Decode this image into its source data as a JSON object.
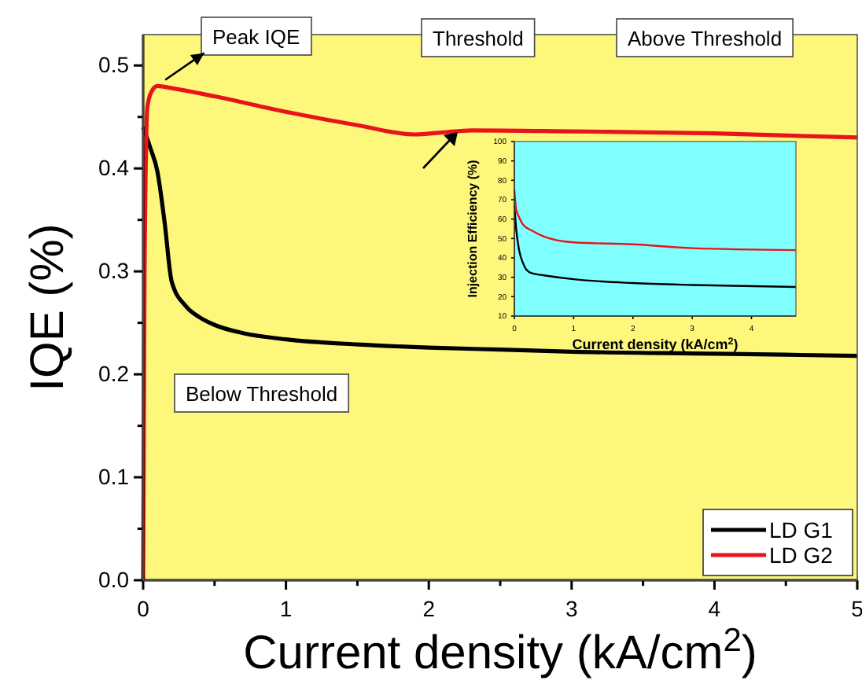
{
  "chart_data": [
    {
      "type": "line",
      "xlabel": "Current density (kA/cm$^{2}$)",
      "ylabel": "IQE (%)",
      "xlim": [
        0,
        5
      ],
      "ylim": [
        0,
        0.53
      ],
      "xticks": [
        0,
        {
          "value": 0.5,
          "label": null
        },
        1,
        {
          "value": 1.5,
          "label": null
        },
        2,
        {
          "value": 2.5,
          "label": null
        },
        3,
        {
          "value": 3.5,
          "label": null
        },
        4,
        {
          "value": 4.5,
          "label": null
        },
        5
      ],
      "yticks": [
        "0.0",
        {
          "value": 0.05,
          "label": null
        },
        {
          "value": 0.1,
          "label": "0.1"
        },
        {
          "value": 0.15,
          "label": null
        },
        {
          "value": 0.2,
          "label": "0.2"
        },
        {
          "value": 0.25,
          "label": null
        },
        {
          "value": 0.3,
          "label": "0.3"
        },
        {
          "value": 0.35,
          "label": null
        },
        {
          "value": 0.4,
          "label": "0.4"
        },
        {
          "value": 0.45,
          "label": null
        },
        {
          "value": 0.5,
          "label": "0.5"
        }
      ],
      "legend": "bottom right",
      "grid": false,
      "series": [
        {
          "name": "LD G1",
          "color": "#000000",
          "x": [
            0,
            0.05,
            0.1,
            0.15,
            0.2,
            0.3,
            0.4,
            0.5,
            0.7,
            1,
            1.5,
            2,
            2.5,
            3,
            4,
            5
          ],
          "values": [
            0.44,
            0.42,
            0.397,
            0.348,
            0.29,
            0.266,
            0.255,
            0.248,
            0.24,
            0.234,
            0.229,
            0.226,
            0.224,
            0.222,
            0.22,
            0.218
          ]
        },
        {
          "name": "LD G2",
          "color": "#e8141b",
          "x": [
            0,
            0.01,
            0.03,
            0.06,
            0.1,
            0.2,
            0.5,
            1,
            1.5,
            1.9,
            2.1,
            2.3,
            3,
            4,
            5
          ],
          "values": [
            0,
            0.3,
            0.46,
            0.475,
            0.48,
            0.478,
            0.47,
            0.455,
            0.442,
            0.433,
            0.435,
            0.437,
            0.436,
            0.434,
            0.43
          ]
        }
      ],
      "annotations": [
        {
          "text": "Peak IQE",
          "x": 0.1,
          "y": 0.48
        },
        "Threshold",
        "Above Threshold",
        "Below Threshold"
      ]
    },
    {
      "type": "line",
      "xlabel": "Current density (kA/cm$^{2}$)",
      "ylabel": "Injection Efficiency (%)",
      "xlim": [
        0,
        4.75
      ],
      "ylim": [
        10,
        100
      ],
      "xticks": [
        0,
        1,
        2,
        3,
        4
      ],
      "yticks": [
        10,
        20,
        30,
        40,
        50,
        60,
        70,
        80,
        90,
        100
      ],
      "grid": false,
      "series": [
        {
          "color": "#000000",
          "x": [
            0,
            0.03,
            0.08,
            0.15,
            0.2,
            0.3,
            0.5,
            1,
            2,
            3,
            4.75
          ],
          "values": [
            67,
            55,
            44,
            37,
            34,
            32,
            31,
            29,
            27,
            26,
            25
          ]
        },
        {
          "color": "#e8141b",
          "x": [
            0,
            0.03,
            0.08,
            0.15,
            0.3,
            0.5,
            1,
            2,
            3,
            4.75
          ],
          "values": [
            75,
            65,
            61,
            57,
            54,
            51,
            48,
            47,
            45,
            44
          ]
        }
      ]
    }
  ]
}
